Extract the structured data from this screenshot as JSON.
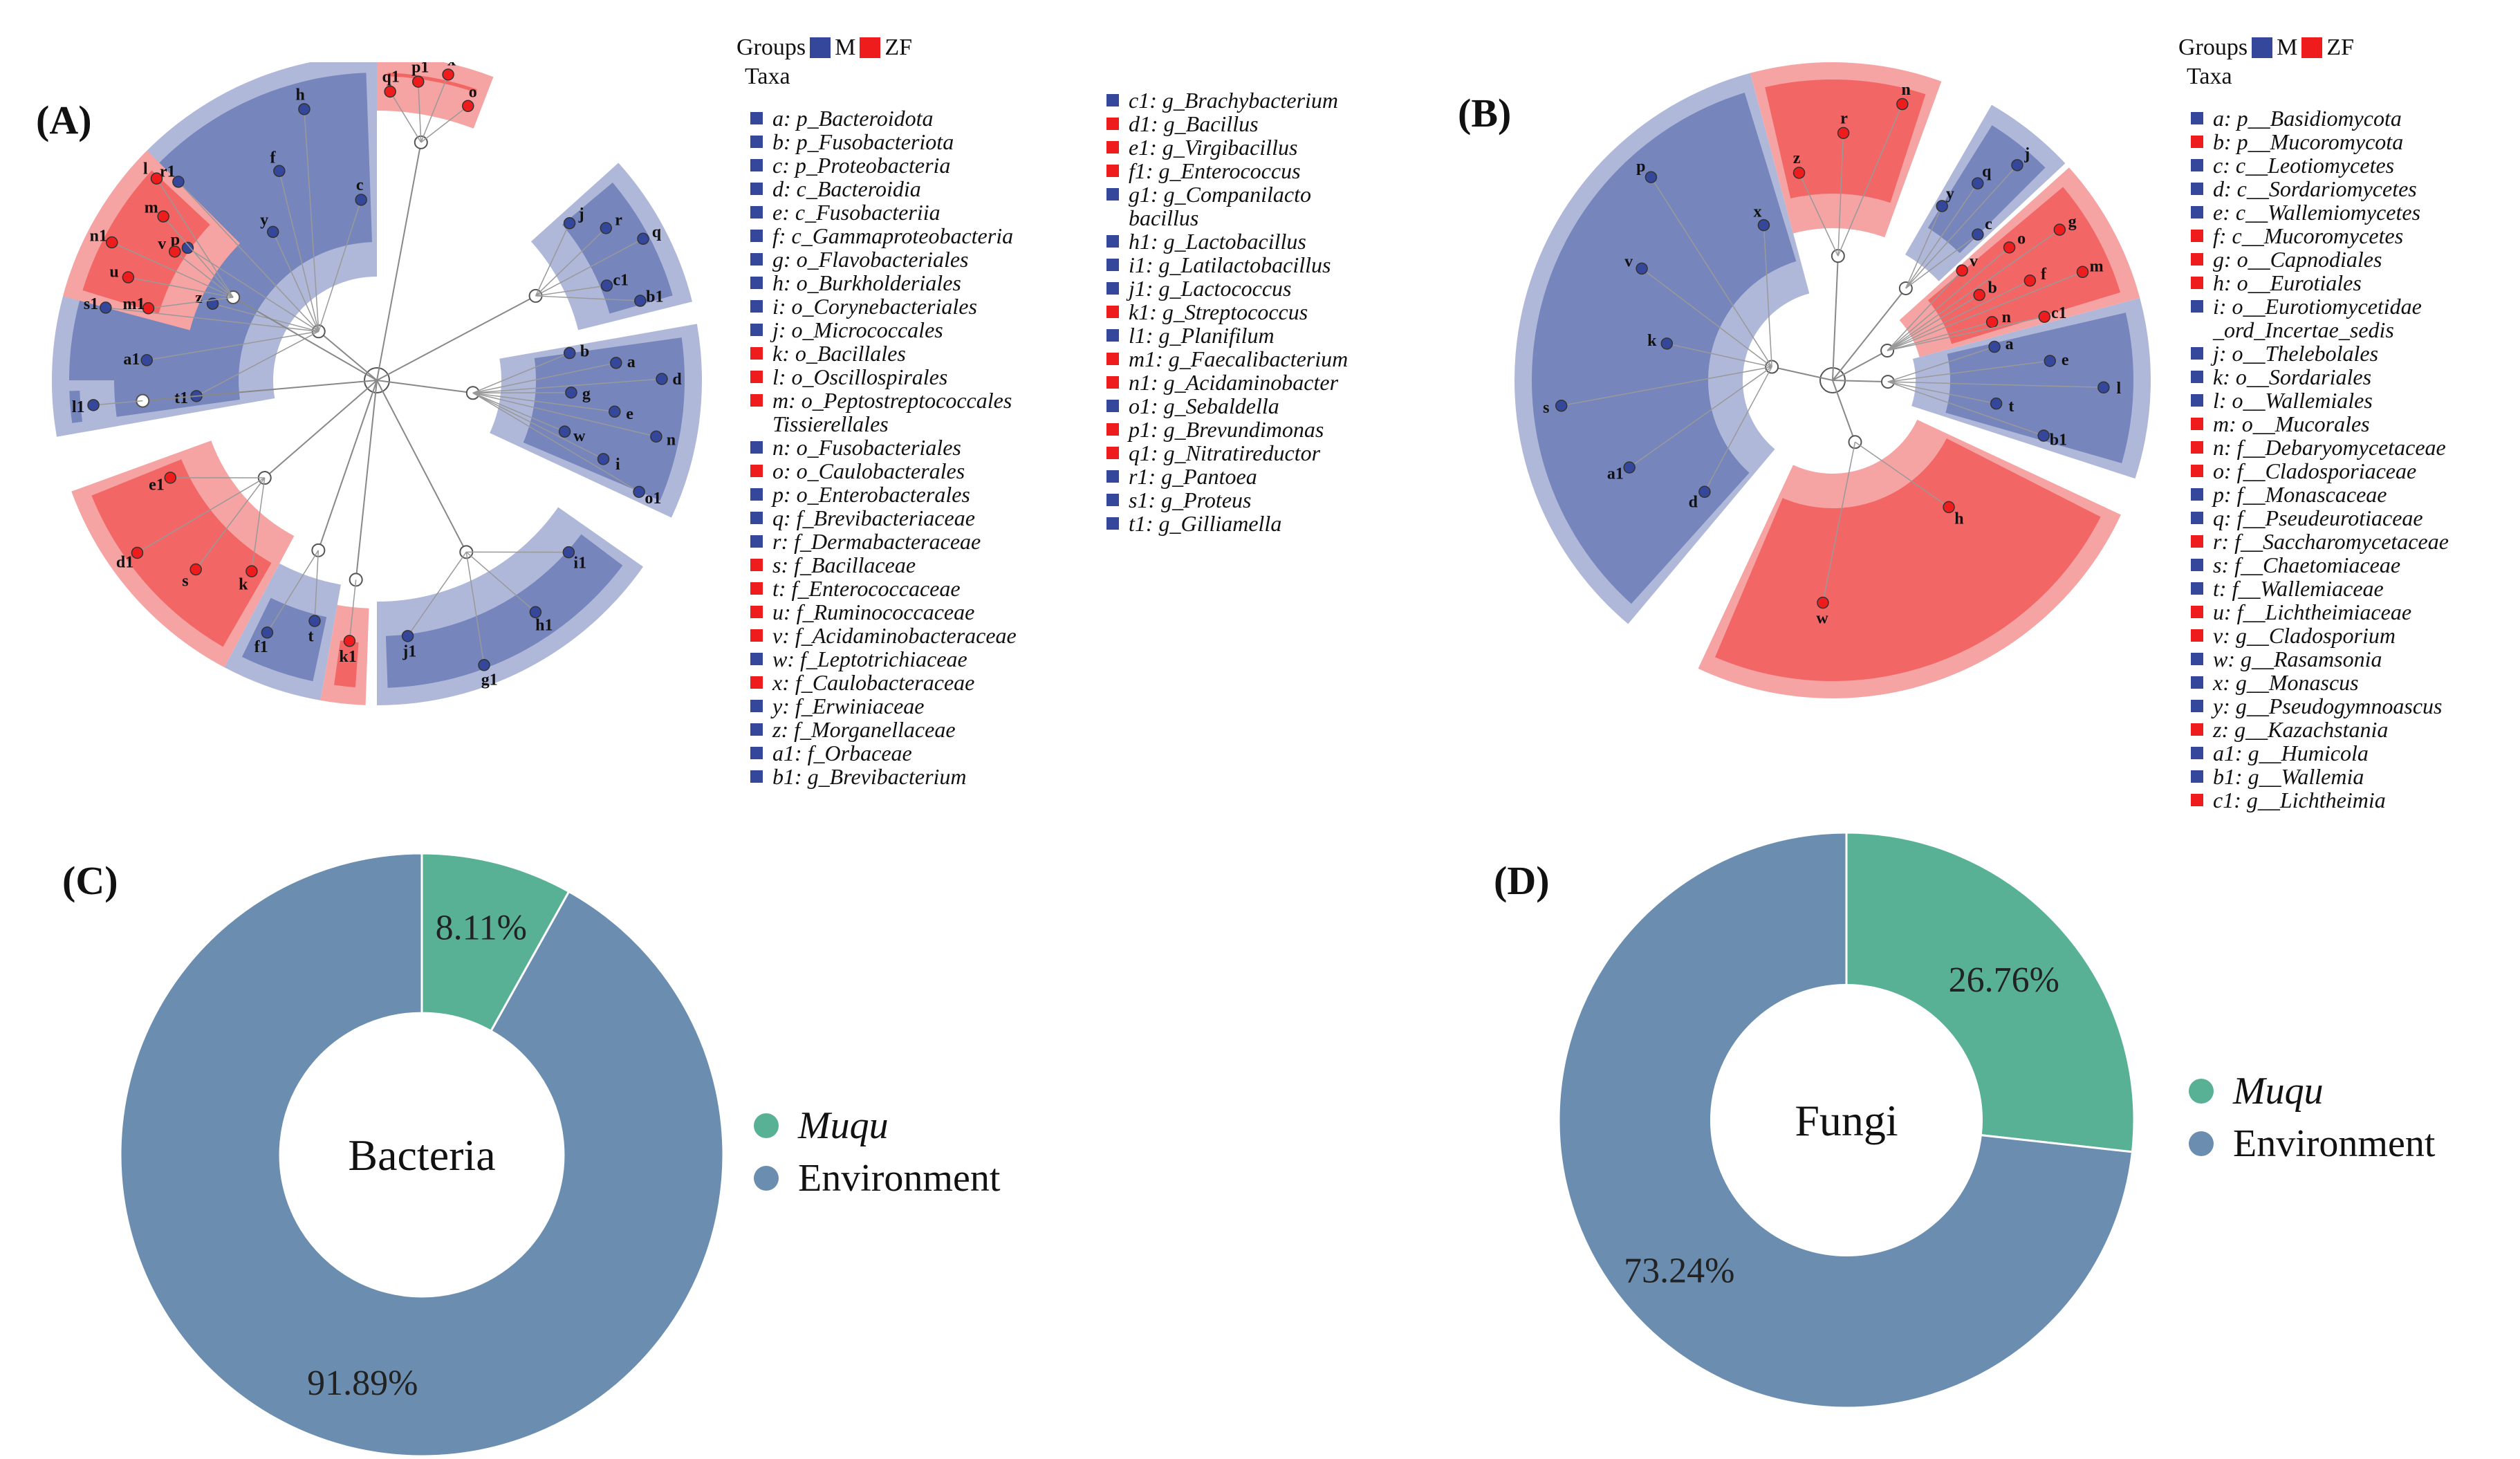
{
  "panel_labels": [
    "(A)",
    "(B)",
    "(C)",
    "(D)"
  ],
  "colors": {
    "M": "#34479a",
    "ZF": "#ee1c1c",
    "M_light": "#b0b8da",
    "ZF_light": "#f6a3a3",
    "muqu": "#58b195",
    "environment": "#6a8db0"
  },
  "panel_a": {
    "groups_label": "Groups",
    "group_names": [
      "M",
      "ZF"
    ],
    "taxa_title": "Taxa",
    "taxa_col1": [
      {
        "text": "a: p_Bacteroidota",
        "group": "M"
      },
      {
        "text": "b: p_Fusobacteriota",
        "group": "M"
      },
      {
        "text": "c: p_Proteobacteria",
        "group": "M"
      },
      {
        "text": "d: c_Bacteroidia",
        "group": "M"
      },
      {
        "text": "e: c_Fusobacteriia",
        "group": "M"
      },
      {
        "text": "f: c_Gammaproteobacteria",
        "group": "M"
      },
      {
        "text": "g: o_Flavobacteriales",
        "group": "M"
      },
      {
        "text": "h: o_Burkholderiales",
        "group": "M"
      },
      {
        "text": "i: o_Corynebacteriales",
        "group": "M"
      },
      {
        "text": "j: o_Micrococcales",
        "group": "M"
      },
      {
        "text": "k: o_Bacillales",
        "group": "ZF"
      },
      {
        "text": "l: o_Oscillospirales",
        "group": "ZF"
      },
      {
        "text": "m: o_Peptostreptococcales",
        "group": "ZF",
        "cont": "Tissierellales"
      },
      {
        "text": "n: o_Fusobacteriales",
        "group": "M"
      },
      {
        "text": "o: o_Caulobacterales",
        "group": "ZF"
      },
      {
        "text": "p: o_Enterobacterales",
        "group": "M"
      },
      {
        "text": "q: f_Brevibacteriaceae",
        "group": "M"
      },
      {
        "text": "r: f_Dermabacteraceae",
        "group": "M"
      },
      {
        "text": "s: f_Bacillaceae",
        "group": "ZF"
      },
      {
        "text": "t: f_Enterococcaceae",
        "group": "ZF"
      },
      {
        "text": "u: f_Ruminococcaceae",
        "group": "ZF"
      },
      {
        "text": "v: f_Acidaminobacteraceae",
        "group": "ZF"
      },
      {
        "text": "w: f_Leptotrichiaceae",
        "group": "M"
      },
      {
        "text": "x: f_Caulobacteraceae",
        "group": "ZF"
      },
      {
        "text": "y: f_Erwiniaceae",
        "group": "M"
      },
      {
        "text": "z: f_Morganellaceae",
        "group": "M"
      },
      {
        "text": "a1: f_Orbaceae",
        "group": "M"
      },
      {
        "text": "b1: g_Brevibacterium",
        "group": "M"
      }
    ],
    "taxa_col2": [
      {
        "text": "c1: g_Brachybacterium",
        "group": "M"
      },
      {
        "text": "d1: g_Bacillus",
        "group": "ZF"
      },
      {
        "text": "e1: g_Virgibacillus",
        "group": "ZF"
      },
      {
        "text": "f1: g_Enterococcus",
        "group": "ZF"
      },
      {
        "text": "g1: g_Companilacto",
        "group": "M",
        "cont": "bacillus"
      },
      {
        "text": "h1: g_Lactobacillus",
        "group": "M"
      },
      {
        "text": "i1: g_Latilactobacillus",
        "group": "M"
      },
      {
        "text": "j1: g_Lactococcus",
        "group": "M"
      },
      {
        "text": "k1: g_Streptococcus",
        "group": "ZF"
      },
      {
        "text": "l1: g_Planifilum",
        "group": "M"
      },
      {
        "text": "m1: g_Faecalibacterium",
        "group": "ZF"
      },
      {
        "text": "n1: g_Acidaminobacter",
        "group": "ZF"
      },
      {
        "text": "o1: g_Sebaldella",
        "group": "M"
      },
      {
        "text": "p1: g_Brevundimonas",
        "group": "ZF"
      },
      {
        "text": "q1: g_Nitratireductor",
        "group": "ZF"
      },
      {
        "text": "r1: g_Pantoea",
        "group": "M"
      },
      {
        "text": "s1: g_Proteus",
        "group": "M"
      },
      {
        "text": "t1: g_Gilliamella",
        "group": "M"
      }
    ],
    "clado_clades": [
      {
        "group": "M",
        "a0": 170,
        "a1": 270,
        "inner": 150,
        "leaves": [
          "t1",
          "a1",
          "s1",
          "z",
          "p",
          "r1",
          "y",
          "f",
          "h",
          "c"
        ]
      },
      {
        "group": "ZF",
        "a0": 270,
        "a1": 291,
        "inner": 390,
        "leaves": [
          "q1",
          "p1",
          "x",
          "o"
        ]
      },
      {
        "group": "M",
        "a0": 318,
        "a1": 346,
        "inner": 300,
        "leaves": [
          "j",
          "r",
          "q",
          "c1",
          "b1"
        ]
      },
      {
        "group": "M",
        "a0": 350,
        "a1": 385,
        "inner": 180,
        "leaves": [
          "b",
          "a",
          "d",
          "g",
          "e",
          "n",
          "w",
          "i",
          "o1"
        ]
      },
      {
        "group": "M",
        "a0": 395,
        "a1": 450,
        "inner": 320,
        "leaves": [
          "i1",
          "h1",
          "g1",
          "j1"
        ]
      },
      {
        "group": "ZF",
        "a0": 452,
        "a1": 460,
        "inner": 330,
        "leaves": [
          "k1"
        ]
      },
      {
        "group": "M",
        "a0": 460,
        "a1": 478,
        "inner": 300,
        "leaves": [
          "t",
          "f1"
        ]
      },
      {
        "group": "ZF",
        "a0": 478,
        "a1": 520,
        "inner": 255,
        "leaves": [
          "k",
          "s",
          "d1",
          "e1"
        ]
      },
      {
        "group": "M",
        "a0": 530,
        "a1": 540,
        "inner": 380,
        "leaves": [
          "l1"
        ]
      },
      {
        "group": "ZF",
        "a0": 555,
        "a1": 585,
        "inner": 280,
        "leaves": [
          "m1",
          "u",
          "n1",
          "v",
          "m",
          "l"
        ]
      }
    ]
  },
  "panel_b": {
    "groups_label": "Groups",
    "group_names": [
      "M",
      "ZF"
    ],
    "taxa_title": "Taxa",
    "taxa": [
      {
        "text": "a: p__Basidiomycota",
        "group": "M"
      },
      {
        "text": "b: p__Mucoromycota",
        "group": "ZF"
      },
      {
        "text": "c: c__Leotiomycetes",
        "group": "M"
      },
      {
        "text": "d: c__Sordariomycetes",
        "group": "M"
      },
      {
        "text": "e: c__Wallemiomycetes",
        "group": "M"
      },
      {
        "text": "f: c__Mucoromycetes",
        "group": "ZF"
      },
      {
        "text": "g: o__Capnodiales",
        "group": "ZF"
      },
      {
        "text": "h: o__Eurotiales",
        "group": "ZF"
      },
      {
        "text": "i: o__Eurotiomycetidae",
        "group": "M",
        "cont": "_ord_Incertae_sedis"
      },
      {
        "text": "j: o__Thelebolales",
        "group": "M"
      },
      {
        "text": "k: o__Sordariales",
        "group": "M"
      },
      {
        "text": "l: o__Wallemiales",
        "group": "M"
      },
      {
        "text": "m: o__Mucorales",
        "group": "ZF"
      },
      {
        "text": "n: f__Debaryomycetaceae",
        "group": "ZF"
      },
      {
        "text": "o: f__Cladosporiaceae",
        "group": "ZF"
      },
      {
        "text": "p: f__Monascaceae",
        "group": "M"
      },
      {
        "text": "q: f__Pseudeurotiaceae",
        "group": "M"
      },
      {
        "text": "r: f__Saccharomycetaceae",
        "group": "ZF"
      },
      {
        "text": "s: f__Chaetomiaceae",
        "group": "M"
      },
      {
        "text": "t: f__Wallemiaceae",
        "group": "M"
      },
      {
        "text": "u: f__Lichtheimiaceae",
        "group": "ZF"
      },
      {
        "text": "v: g__Cladosporium",
        "group": "ZF"
      },
      {
        "text": "w: g__Rasamsonia",
        "group": "M"
      },
      {
        "text": "x: g__Monascus",
        "group": "M"
      },
      {
        "text": "y: g__Pseudogymnoascus",
        "group": "M"
      },
      {
        "text": "z: g__Kazachstania",
        "group": "ZF"
      },
      {
        "text": "a1: g__Humicola",
        "group": "M"
      },
      {
        "text": "b1: g__Wallemia",
        "group": "M"
      },
      {
        "text": "c1: g__Lichtheimia",
        "group": "ZF"
      }
    ],
    "clado_clades": [
      {
        "group": "M",
        "a0": 130,
        "a1": 255,
        "inner": 130,
        "leaves": [
          "d",
          "a1",
          "s",
          "k",
          "v",
          "p",
          "x"
        ]
      },
      {
        "group": "ZF",
        "a0": 255,
        "a1": 290,
        "inner": 220,
        "leaves": [
          "z",
          "r",
          "n"
        ]
      },
      {
        "group": "M",
        "a0": 300,
        "a1": 317,
        "inner": 210,
        "leaves": [
          "y",
          "q",
          "j",
          "c"
        ]
      },
      {
        "group": "ZF",
        "a0": 318,
        "a1": 345,
        "inner": 130,
        "leaves": [
          "v",
          "o",
          "g",
          "b",
          "f",
          "m",
          "n",
          "c1"
        ]
      },
      {
        "group": "M",
        "a0": 345,
        "a1": 378,
        "inner": 120,
        "leaves": [
          "a",
          "e",
          "l",
          "t",
          "b1"
        ]
      },
      {
        "group": "ZF",
        "a0": 385,
        "a1": 475,
        "inner": 135,
        "leaves": [
          "h",
          "w"
        ]
      }
    ]
  },
  "chart_data": [
    {
      "type": "pie",
      "title": "",
      "center_label": "Bacteria",
      "labels": [
        "Muqu",
        "Environment"
      ],
      "values": [
        8.11,
        91.89
      ],
      "value_labels": [
        "8.11%",
        "91.89%"
      ],
      "legend_placement": "right"
    },
    {
      "type": "pie",
      "title": "",
      "center_label": "Fungi",
      "labels": [
        "Muqu",
        "Environment"
      ],
      "values": [
        26.76,
        73.24
      ],
      "value_labels": [
        "26.76%",
        "73.24%"
      ],
      "legend_placement": "right"
    }
  ]
}
